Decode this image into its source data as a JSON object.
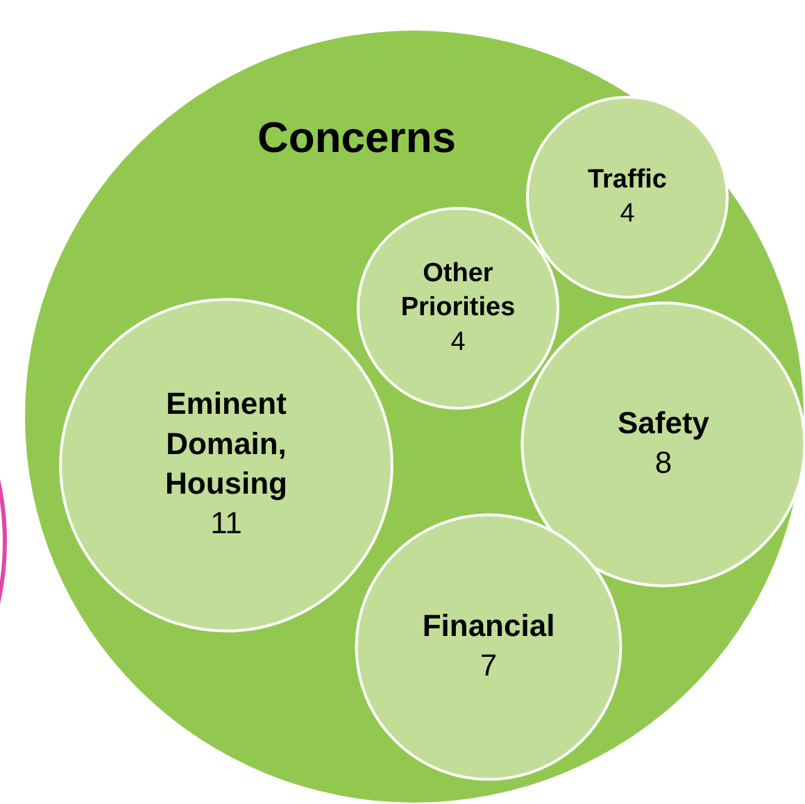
{
  "chart_data": {
    "type": "other",
    "title": "Concerns",
    "categories": [
      "Traffic",
      "Other Priorities",
      "Eminent Domain, Housing",
      "Safety",
      "Financial"
    ],
    "values": [
      4,
      4,
      11,
      8,
      7
    ],
    "color": "#c2dd98",
    "data_labels": true
  }
}
